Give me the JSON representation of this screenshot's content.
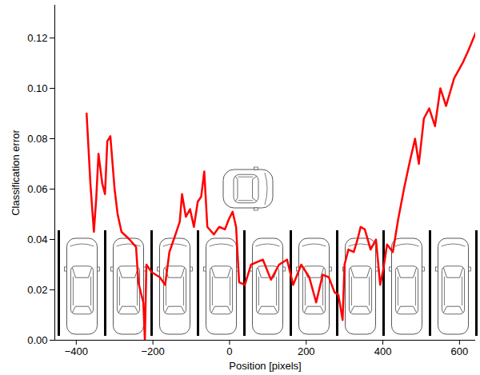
{
  "chart_data": {
    "type": "line",
    "x_label": "Position [pixels]",
    "y_label": "Classification error",
    "color": "#ff0000",
    "xlim": [
      -456,
      642
    ],
    "xticks": [
      -400,
      -200,
      0,
      200,
      400,
      600
    ],
    "ylim": [
      0,
      0.133
    ],
    "yticks": [
      0,
      0.02,
      0.04,
      0.06,
      0.08,
      0.1,
      0.12
    ],
    "x": [
      -373,
      -363,
      -354,
      -348,
      -342,
      -332,
      -325,
      -319,
      -311,
      -300,
      -292,
      -282,
      -261,
      -244,
      -238,
      -230,
      -225,
      -221,
      -217,
      -203,
      -182,
      -168,
      -157,
      -141,
      -130,
      -124,
      -114,
      -103,
      -93,
      -83,
      -74,
      -66,
      -58,
      -41,
      -27,
      -12,
      -2,
      8,
      17,
      25,
      40,
      56,
      87,
      108,
      129,
      150,
      166,
      187,
      208,
      226,
      243,
      259,
      274,
      284,
      295,
      300,
      310,
      324,
      334,
      342,
      353,
      368,
      382,
      393,
      401,
      411,
      426,
      440,
      455,
      469,
      484,
      494,
      507,
      521,
      536,
      550,
      565,
      586,
      608,
      623,
      642
    ],
    "values": [
      0.09,
      0.062,
      0.043,
      0.056,
      0.074,
      0.062,
      0.058,
      0.079,
      0.081,
      0.06,
      0.05,
      0.043,
      0.04,
      0.037,
      0.023,
      0.018,
      0.015,
      0.0,
      0.03,
      0.027,
      0.025,
      0.022,
      0.035,
      0.042,
      0.047,
      0.058,
      0.049,
      0.052,
      0.045,
      0.055,
      0.057,
      0.067,
      0.045,
      0.042,
      0.045,
      0.044,
      0.048,
      0.051,
      0.045,
      0.023,
      0.022,
      0.03,
      0.032,
      0.024,
      0.03,
      0.032,
      0.022,
      0.03,
      0.025,
      0.015,
      0.026,
      0.025,
      0.019,
      0.018,
      0.008,
      0.03,
      0.036,
      0.035,
      0.04,
      0.045,
      0.044,
      0.036,
      0.04,
      0.022,
      0.028,
      0.038,
      0.035,
      0.048,
      0.06,
      0.07,
      0.08,
      0.07,
      0.088,
      0.092,
      0.085,
      0.1,
      0.093,
      0.104,
      0.11,
      0.115,
      0.122
    ]
  }
}
